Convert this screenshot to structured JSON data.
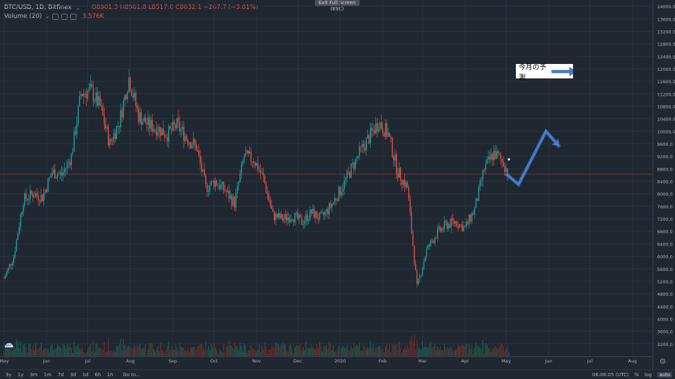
{
  "header": {
    "symbol": "BTC/USD, 1D, Bitfinex",
    "chevron": "⌄",
    "ohlc": "O8901.3  H8961.8  L8517.0  C8632.1  −267.7 (−3.01%)"
  },
  "volume_legend": {
    "label": "Volume (20)",
    "chevron": "⌄",
    "value": "3.576K"
  },
  "fullscreen_label": "Exit Full Screen (ESC)",
  "annotation": {
    "text": "今月の予測",
    "arrow_color": "#4a7cc4"
  },
  "price_label": "8632.1",
  "bottom": {
    "timeframes": [
      "3y",
      "1y",
      "3m",
      "1m",
      "7d",
      "3d",
      "1d",
      "6h",
      "1h"
    ],
    "goto": "Go to...",
    "clock": "06:06:05 (UTC)",
    "percent": "%",
    "log": "log",
    "auto": "auto"
  },
  "icons": {
    "gear": "gear-icon",
    "logo": "cloud-logo-icon"
  },
  "colors": {
    "background": "#1f2731",
    "grid": "#2a323c",
    "up": "#26a69a",
    "down": "#ef5350",
    "price_line": "#ef5350",
    "forecast": "#4a7cc4"
  },
  "chart_data": {
    "type": "candlestick",
    "title": "",
    "xlabel": "",
    "ylabel": "",
    "ylim": [
      2800,
      14200
    ],
    "y_ticks": [
      3200,
      3600,
      4000,
      4400,
      4800,
      5200,
      5600,
      6000,
      6400,
      6800,
      7200,
      7600,
      8000,
      8400,
      8800,
      9200,
      9600,
      10000,
      10400,
      10800,
      11200,
      11600,
      12000,
      12400,
      12800,
      13200,
      13600,
      14000
    ],
    "y_tick_labels": [
      "3200.0",
      "3600.0",
      "4000.0",
      "4400.0",
      "4800.0",
      "5200.0",
      "5600.0",
      "6000.0",
      "6400.0",
      "6800.0",
      "7200.0",
      "7600.0",
      "8000.0",
      "8400.0",
      "8800.0",
      "9200.0",
      "9600.0",
      "10000.0",
      "10400.0",
      "10800.0",
      "11200.0",
      "11600.0",
      "12000.0",
      "12400.0",
      "12800.0",
      "13200.0",
      "13600.0",
      "14000.0"
    ],
    "x_labels": [
      "May",
      "Jun",
      "Jul",
      "Aug",
      "Sep",
      "Oct",
      "Nov",
      "Dec",
      "2020",
      "Feb",
      "Mar",
      "Apr",
      "May",
      "Jun",
      "Jul",
      "Aug"
    ],
    "x_label_days": [
      0,
      31,
      61,
      92,
      123,
      153,
      184,
      214,
      245,
      276,
      305,
      336,
      366,
      397,
      427,
      458
    ],
    "x_range": [
      -3,
      473
    ],
    "last_price": 8632.1,
    "close_series_days": [
      0,
      7,
      14,
      21,
      28,
      35,
      42,
      49,
      56,
      63,
      70,
      77,
      84,
      91,
      98,
      105,
      112,
      119,
      126,
      133,
      140,
      147,
      154,
      161,
      168,
      175,
      182,
      189,
      196,
      203,
      210,
      217,
      224,
      231,
      238,
      245,
      252,
      259,
      266,
      273,
      280,
      287,
      294,
      301,
      308,
      315,
      322,
      329,
      336,
      343,
      350,
      357,
      364,
      368
    ],
    "close_series": [
      5300,
      6000,
      7800,
      8000,
      7900,
      8700,
      8600,
      9200,
      11200,
      11300,
      10800,
      9600,
      10300,
      11700,
      10500,
      10200,
      10100,
      9900,
      10200,
      9800,
      9500,
      8200,
      8400,
      8100,
      7700,
      9200,
      9100,
      8500,
      7300,
      7200,
      7300,
      7100,
      7400,
      7200,
      7600,
      8100,
      8700,
      9300,
      9800,
      10300,
      9900,
      8700,
      8200,
      5000,
      6200,
      6700,
      7000,
      7100,
      6900,
      7500,
      8800,
      9300,
      9000,
      8632.1
    ],
    "forecast_path": [
      [
        366,
        8632
      ],
      [
        375,
        8300
      ],
      [
        395,
        10000
      ],
      [
        405,
        9500
      ]
    ],
    "volume_note": "volume bars at bottom, scale not printed"
  }
}
